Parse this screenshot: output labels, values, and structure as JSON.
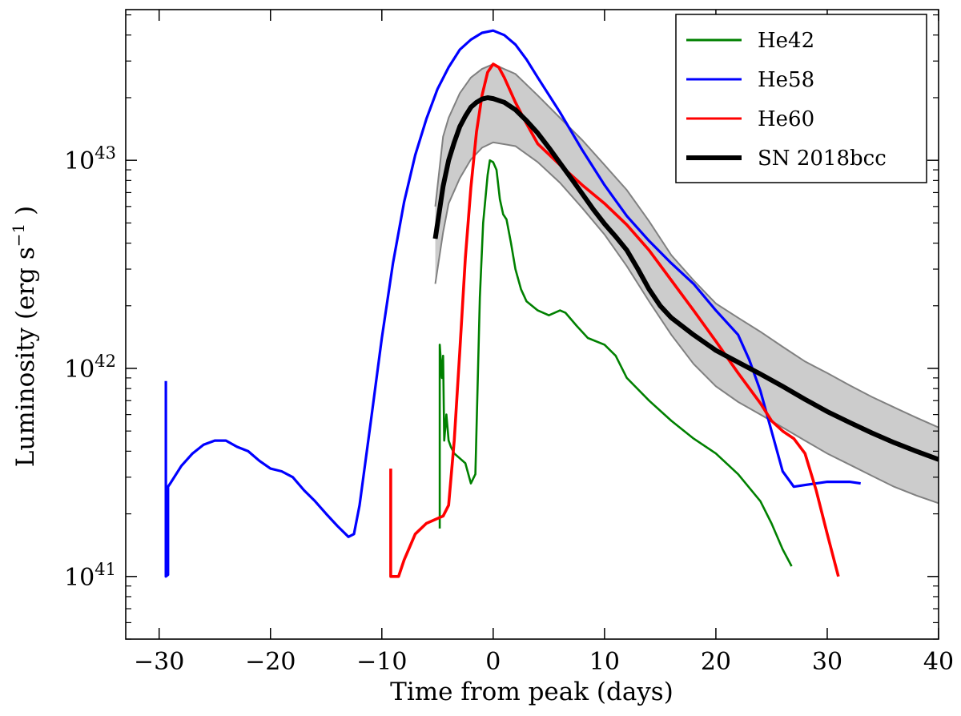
{
  "chart_data": {
    "type": "line",
    "xlabel": "Time from peak (days)",
    "ylabel": "Luminosity (erg s",
    "ylabel_sup": "−1",
    "ylabel_close": " )",
    "xlim": [
      -33,
      40
    ],
    "ylim": [
      5e+40,
      5.3e+43
    ],
    "y_scale": "log",
    "xticks": [
      -30,
      -20,
      -10,
      0,
      10,
      20,
      30,
      40
    ],
    "xtick_labels": [
      "−30",
      "−20",
      "−10",
      "0",
      "10",
      "20",
      "30",
      "40"
    ],
    "yticks": [
      1e+41,
      1e+42,
      1e+43
    ],
    "ytick_base": "10",
    "ytick_exponents": [
      "41",
      "42",
      "43"
    ],
    "legend_position": "top-right",
    "series": [
      {
        "name": "He42",
        "color": "#008000",
        "x": [
          -4.8,
          -4.8,
          -4.6,
          -4.5,
          -4.4,
          -4.2,
          -4.0,
          -3.8,
          -3.5,
          -3.0,
          -2.5,
          -2.0,
          -1.6,
          -1.2,
          -0.9,
          -0.5,
          -0.3,
          0.0,
          0.3,
          0.6,
          0.9,
          1.2,
          1.6,
          2.0,
          2.5,
          3.0,
          4.0,
          5.0,
          6.0,
          6.5,
          7.5,
          8.5,
          10.0,
          11.0,
          12.0,
          14.0,
          16.0,
          18.0,
          20.0,
          22.0,
          24.0,
          25.0,
          26.0,
          26.8
        ],
        "y": [
          1.7e+41,
          1.3e+42,
          9e+41,
          1.15e+42,
          4.5e+41,
          6e+41,
          4.5e+41,
          4.2e+41,
          3.9e+41,
          3.7e+41,
          3.5e+41,
          2.8e+41,
          3.1e+41,
          2.2e+42,
          5e+42,
          8.5e+42,
          1e+43,
          9.8e+42,
          9e+42,
          6.5e+42,
          5.5e+42,
          5.2e+42,
          4e+42,
          3e+42,
          2.4e+42,
          2.1e+42,
          1.9e+42,
          1.8e+42,
          1.9e+42,
          1.85e+42,
          1.6e+42,
          1.4e+42,
          1.3e+42,
          1.15e+42,
          9e+41,
          7e+41,
          5.6e+41,
          4.6e+41,
          3.9e+41,
          3.1e+41,
          2.3e+41,
          1.8e+41,
          1.35e+41,
          1.12e+41
        ]
      },
      {
        "name": "He58",
        "color": "#0000ff",
        "x": [
          -29.4,
          -29.4,
          -29.2,
          -29.2,
          -29.0,
          -28.0,
          -27.0,
          -26.0,
          -25.0,
          -24.0,
          -23.0,
          -22.0,
          -21.0,
          -20.0,
          -19.0,
          -18.0,
          -17.0,
          -16.0,
          -15.0,
          -14.0,
          -13.0,
          -12.5,
          -12.0,
          -11.0,
          -10.0,
          -9.0,
          -8.0,
          -7.0,
          -6.0,
          -5.0,
          -4.0,
          -3.0,
          -2.0,
          -1.0,
          0.0,
          1.0,
          2.0,
          3.0,
          4.0,
          6.0,
          8.0,
          10.0,
          12.0,
          14.0,
          16.0,
          18.0,
          20.0,
          22.0,
          23.0,
          24.0,
          25.0,
          26.0,
          27.0,
          28.0,
          29.0,
          30.0,
          31.0,
          32.0,
          33.0
        ],
        "y": [
          8.7e+41,
          1e+41,
          1.02e+41,
          2.7e+41,
          2.8e+41,
          3.4e+41,
          3.9e+41,
          4.3e+41,
          4.5e+41,
          4.5e+41,
          4.2e+41,
          4e+41,
          3.6e+41,
          3.3e+41,
          3.2e+41,
          3e+41,
          2.6e+41,
          2.3e+41,
          2e+41,
          1.75e+41,
          1.55e+41,
          1.6e+41,
          2.2e+41,
          5.5e+41,
          1.4e+42,
          3.2e+42,
          6.3e+42,
          1.06e+43,
          1.58e+43,
          2.2e+43,
          2.8e+43,
          3.4e+43,
          3.8e+43,
          4.1e+43,
          4.2e+43,
          4e+43,
          3.6e+43,
          3.05e+43,
          2.5e+43,
          1.7e+43,
          1.12e+43,
          7.6e+42,
          5.4e+42,
          4.1e+42,
          3.2e+42,
          2.55e+42,
          1.9e+42,
          1.45e+42,
          1.1e+42,
          7.8e+41,
          5e+41,
          3.2e+41,
          2.7e+41,
          2.75e+41,
          2.8e+41,
          2.85e+41,
          2.85e+41,
          2.85e+41,
          2.8e+41
        ]
      },
      {
        "name": "He60",
        "color": "#ff0000",
        "x": [
          -9.2,
          -9.2,
          -9.0,
          -8.5,
          -8.0,
          -7.0,
          -6.0,
          -5.0,
          -4.5,
          -4.0,
          -3.5,
          -3.0,
          -2.5,
          -2.0,
          -1.5,
          -1.0,
          -0.5,
          0.0,
          0.5,
          1.0,
          2.0,
          3.0,
          4.0,
          6.0,
          8.0,
          10.0,
          12.0,
          14.0,
          16.0,
          18.0,
          20.0,
          22.0,
          24.0,
          25.0,
          26.0,
          27.0,
          28.0,
          29.0,
          30.0,
          31.0
        ],
        "y": [
          3.3e+41,
          1e+41,
          1e+41,
          1e+41,
          1.2e+41,
          1.6e+41,
          1.8e+41,
          1.9e+41,
          1.95e+41,
          2.2e+41,
          4.5e+41,
          1.2e+42,
          3.4e+42,
          7.4e+42,
          1.37e+43,
          2.05e+43,
          2.65e+43,
          2.9e+43,
          2.8e+43,
          2.5e+43,
          1.9e+43,
          1.5e+43,
          1.2e+43,
          9.5e+42,
          7.6e+42,
          6.2e+42,
          4.9e+42,
          3.7e+42,
          2.65e+42,
          1.9e+42,
          1.35e+42,
          9.5e+41,
          6.8e+41,
          5.6e+41,
          5e+41,
          4.6e+41,
          3.9e+41,
          2.6e+41,
          1.6e+41,
          1e+41
        ]
      },
      {
        "name": "SN 2018bcc",
        "color": "#000000",
        "x": [
          -5.2,
          -4.5,
          -4.0,
          -3.5,
          -3.0,
          -2.5,
          -2.0,
          -1.5,
          -1.0,
          -0.5,
          0.0,
          1.0,
          2.0,
          3.0,
          4.0,
          5.0,
          6.0,
          7.0,
          8.0,
          9.0,
          10.0,
          11.0,
          12.0,
          13.0,
          14.0,
          15.0,
          16.0,
          18.0,
          20.0,
          22.0,
          24.0,
          26.0,
          28.0,
          30.0,
          32.0,
          34.0,
          36.0,
          38.0,
          40.0
        ],
        "y": [
          4.2e+42,
          7.5e+42,
          1e+43,
          1.22e+43,
          1.45e+43,
          1.63e+43,
          1.8e+43,
          1.9e+43,
          1.97e+43,
          2e+43,
          1.98e+43,
          1.9e+43,
          1.75e+43,
          1.55e+43,
          1.35e+43,
          1.15e+43,
          9.7e+42,
          8.2e+42,
          6.9e+42,
          5.8e+42,
          4.95e+42,
          4.3e+42,
          3.7e+42,
          3e+42,
          2.4e+42,
          2e+42,
          1.75e+42,
          1.45e+42,
          1.22e+42,
          1.07e+42,
          9.4e+41,
          8.2e+41,
          7.1e+41,
          6.2e+41,
          5.5e+41,
          4.9e+41,
          4.4e+41,
          4e+41,
          3.65e+41
        ]
      }
    ],
    "band": {
      "name": "SN 2018bcc uncertainty",
      "fill": "#cccccc",
      "edge": "#808080",
      "x": [
        -5.2,
        -4.5,
        -4.0,
        -3.0,
        -2.0,
        -1.0,
        0.0,
        2.0,
        4.0,
        6.0,
        8.0,
        10.0,
        12.0,
        14.0,
        16.0,
        18.0,
        20.0,
        22.0,
        24.0,
        26.0,
        28.0,
        30.0,
        32.0,
        34.0,
        36.0,
        38.0,
        40.0
      ],
      "upper": [
        6e+42,
        1.3e+43,
        1.6e+43,
        2.1e+43,
        2.5e+43,
        2.75e+43,
        2.9e+43,
        2.6e+43,
        2.05e+43,
        1.6e+43,
        1.25e+43,
        9.5e+42,
        7.2e+42,
        5.1e+42,
        3.5e+42,
        2.65e+42,
        2.05e+42,
        1.75e+42,
        1.5e+42,
        1.27e+42,
        1.08e+42,
        9.5e+41,
        8.3e+41,
        7.3e+41,
        6.5e+41,
        5.8e+41,
        5.2e+41
      ],
      "lower": [
        2.55e+42,
        4.5e+42,
        6.2e+42,
        8.2e+42,
        1.01e+43,
        1.15e+43,
        1.22e+43,
        1.17e+43,
        9.8e+42,
        7.8e+42,
        5.9e+42,
        4.4e+42,
        3.1e+42,
        2.1e+42,
        1.45e+42,
        1.05e+42,
        8.2e+41,
        6.9e+41,
        6e+41,
        5.2e+41,
        4.5e+41,
        3.9e+41,
        3.45e+41,
        3.05e+41,
        2.7e+41,
        2.45e+41,
        2.25e+41
      ]
    }
  }
}
